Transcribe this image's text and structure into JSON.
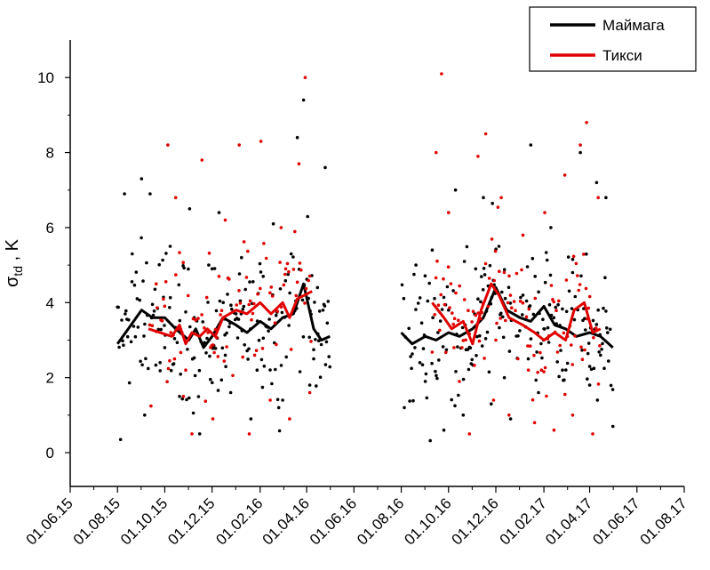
{
  "chart_data": {
    "type": "scatter",
    "ylabel_symbol": "σ",
    "ylabel_sub": "td",
    "ylabel_unit": " , K",
    "xlabel": "",
    "title": "",
    "ylim": [
      -0.9,
      11
    ],
    "xlim": [
      "2015-06-01",
      "2017-08-01"
    ],
    "y_ticks": [
      "0",
      "2",
      "4",
      "6",
      "8",
      "10"
    ],
    "x_ticks": [
      "01.06.15",
      "01.08.15",
      "01.10.15",
      "01.12.15",
      "01.02.16",
      "01.04.16",
      "01.06.16",
      "01.08.16",
      "01.10.16",
      "01.12.16",
      "01.02.17",
      "01.04.17",
      "01.06.17",
      "01.08.17"
    ],
    "legend": {
      "position": "top-right",
      "entries": [
        "Маймага",
        "Тикси"
      ]
    },
    "series": [
      {
        "name": "Маймага",
        "color": "#000000",
        "segments": [
          {
            "start": "2015-08-01",
            "end": "2016-05-01"
          },
          {
            "start": "2016-08-01",
            "end": "2017-05-01"
          }
        ],
        "mean_line": [
          [
            "2015-08-01",
            2.9
          ],
          [
            "2015-08-15",
            3.3
          ],
          [
            "2015-09-01",
            3.8
          ],
          [
            "2015-09-15",
            3.6
          ],
          [
            "2015-10-01",
            3.6
          ],
          [
            "2015-10-15",
            3.3
          ],
          [
            "2015-11-01",
            3.0
          ],
          [
            "2015-11-10",
            3.3
          ],
          [
            "2015-11-20",
            2.8
          ],
          [
            "2015-12-01",
            3.1
          ],
          [
            "2015-12-15",
            3.6
          ],
          [
            "2016-01-01",
            3.4
          ],
          [
            "2016-01-15",
            3.2
          ],
          [
            "2016-02-01",
            3.5
          ],
          [
            "2016-02-15",
            3.3
          ],
          [
            "2016-03-01",
            3.6
          ],
          [
            "2016-03-15",
            3.7
          ],
          [
            "2016-03-28",
            4.5
          ],
          [
            "2016-04-10",
            3.3
          ],
          [
            "2016-04-20",
            3.0
          ],
          [
            "2016-05-01",
            3.1
          ],
          null,
          [
            "2016-08-01",
            3.2
          ],
          [
            "2016-08-15",
            2.9
          ],
          [
            "2016-09-01",
            3.1
          ],
          [
            "2016-09-15",
            3.0
          ],
          [
            "2016-10-01",
            3.2
          ],
          [
            "2016-10-15",
            3.1
          ],
          [
            "2016-11-01",
            3.3
          ],
          [
            "2016-11-15",
            3.6
          ],
          [
            "2016-12-01",
            4.4
          ],
          [
            "2016-12-15",
            3.8
          ],
          [
            "2017-01-01",
            3.6
          ],
          [
            "2017-01-15",
            3.5
          ],
          [
            "2017-02-01",
            3.9
          ],
          [
            "2017-02-15",
            3.4
          ],
          [
            "2017-03-01",
            3.3
          ],
          [
            "2017-03-15",
            3.1
          ],
          [
            "2017-04-01",
            3.2
          ],
          [
            "2017-04-15",
            3.1
          ],
          [
            "2017-05-01",
            2.8
          ]
        ],
        "scatter": [
          [
            "2015-08-05",
            0.35
          ],
          [
            "2015-08-10",
            6.9
          ],
          [
            "2015-08-20",
            5.3
          ],
          [
            "2015-09-01",
            7.3
          ],
          [
            "2015-09-12",
            6.9
          ],
          [
            "2015-09-25",
            2.4
          ],
          [
            "2015-10-08",
            5.5
          ],
          [
            "2015-10-20",
            1.5
          ],
          [
            "2015-11-02",
            6.5
          ],
          [
            "2015-11-15",
            0.5
          ],
          [
            "2015-12-01",
            4.9
          ],
          [
            "2015-12-10",
            6.4
          ],
          [
            "2015-12-25",
            1.6
          ],
          [
            "2016-01-08",
            5.2
          ],
          [
            "2016-01-20",
            0.9
          ],
          [
            "2016-02-05",
            4.7
          ],
          [
            "2016-02-18",
            6.1
          ],
          [
            "2016-03-01",
            1.4
          ],
          [
            "2016-03-12",
            5.3
          ],
          [
            "2016-03-20",
            8.4
          ],
          [
            "2016-03-28",
            9.4
          ],
          [
            "2016-04-05",
            1.8
          ],
          [
            "2016-04-15",
            4.4
          ],
          [
            "2016-04-25",
            7.6
          ],
          [
            "2015-09-05",
            1.0
          ],
          [
            "2015-10-01",
            2.8
          ],
          [
            "2015-11-08",
            3.6
          ],
          [
            "2015-12-18",
            2.6
          ],
          [
            "2016-01-28",
            2.2
          ],
          [
            "2016-02-25",
            1.2
          ],
          [
            "2016-04-10",
            2.5
          ],
          [
            "2016-08-05",
            1.2
          ],
          [
            "2016-08-20",
            5.0
          ],
          [
            "2016-09-01",
            1.9
          ],
          [
            "2016-09-10",
            5.4
          ],
          [
            "2016-09-25",
            0.6
          ],
          [
            "2016-10-10",
            7.0
          ],
          [
            "2016-10-20",
            1.0
          ],
          [
            "2016-11-05",
            4.9
          ],
          [
            "2016-11-15",
            6.8
          ],
          [
            "2016-11-25",
            1.3
          ],
          [
            "2016-12-05",
            5.5
          ],
          [
            "2016-12-20",
            0.9
          ],
          [
            "2017-01-05",
            4.2
          ],
          [
            "2017-01-15",
            8.2
          ],
          [
            "2017-01-25",
            1.6
          ],
          [
            "2017-02-10",
            6.0
          ],
          [
            "2017-02-25",
            2.2
          ],
          [
            "2017-03-10",
            4.8
          ],
          [
            "2017-03-20",
            8.0
          ],
          [
            "2017-04-01",
            1.8
          ],
          [
            "2017-04-10",
            7.2
          ],
          [
            "2017-04-22",
            6.8
          ],
          [
            "2017-05-01",
            0.7
          ],
          [
            "2016-08-25",
            2.4
          ],
          [
            "2016-10-01",
            3.8
          ],
          [
            "2016-12-12",
            2.0
          ],
          [
            "2017-02-01",
            3.3
          ],
          [
            "2017-04-15",
            2.6
          ]
        ]
      },
      {
        "name": "Тикси",
        "color": "#e00000",
        "segments": [
          {
            "start": "2015-09-10",
            "end": "2016-04-08"
          },
          {
            "start": "2016-09-10",
            "end": "2017-04-15"
          }
        ],
        "mean_line": [
          [
            "2015-09-10",
            3.3
          ],
          [
            "2015-09-25",
            3.2
          ],
          [
            "2015-10-10",
            3.1
          ],
          [
            "2015-10-20",
            3.4
          ],
          [
            "2015-10-28",
            2.9
          ],
          [
            "2015-11-05",
            3.2
          ],
          [
            "2015-11-15",
            3.1
          ],
          [
            "2015-11-25",
            3.3
          ],
          [
            "2015-12-05",
            3.1
          ],
          [
            "2015-12-15",
            3.6
          ],
          [
            "2016-01-01",
            3.8
          ],
          [
            "2016-01-15",
            3.7
          ],
          [
            "2016-02-01",
            4.0
          ],
          [
            "2016-02-15",
            3.7
          ],
          [
            "2016-03-01",
            4.0
          ],
          [
            "2016-03-10",
            3.6
          ],
          [
            "2016-03-20",
            4.1
          ],
          [
            "2016-04-08",
            4.3
          ],
          null,
          [
            "2016-09-10",
            4.0
          ],
          [
            "2016-09-25",
            3.6
          ],
          [
            "2016-10-05",
            3.3
          ],
          [
            "2016-10-20",
            3.5
          ],
          [
            "2016-11-01",
            2.9
          ],
          [
            "2016-11-12",
            3.8
          ],
          [
            "2016-11-25",
            4.5
          ],
          [
            "2016-12-05",
            4.2
          ],
          [
            "2016-12-18",
            3.6
          ],
          [
            "2017-01-05",
            3.4
          ],
          [
            "2017-01-20",
            3.2
          ],
          [
            "2017-02-01",
            3.0
          ],
          [
            "2017-02-15",
            3.2
          ],
          [
            "2017-03-01",
            3.0
          ],
          [
            "2017-03-12",
            3.8
          ],
          [
            "2017-03-25",
            4.0
          ],
          [
            "2017-04-05",
            3.2
          ],
          [
            "2017-04-15",
            3.3
          ]
        ],
        "scatter": [
          [
            "2015-09-20",
            4.5
          ],
          [
            "2015-10-05",
            8.2
          ],
          [
            "2015-10-15",
            6.8
          ],
          [
            "2015-10-25",
            1.5
          ],
          [
            "2015-11-05",
            0.5
          ],
          [
            "2015-11-18",
            7.8
          ],
          [
            "2015-12-02",
            0.9
          ],
          [
            "2015-12-18",
            6.2
          ],
          [
            "2016-01-05",
            8.2
          ],
          [
            "2016-01-18",
            0.5
          ],
          [
            "2016-02-02",
            8.3
          ],
          [
            "2016-02-14",
            1.4
          ],
          [
            "2016-02-28",
            6.0
          ],
          [
            "2016-03-10",
            0.9
          ],
          [
            "2016-03-22",
            7.7
          ],
          [
            "2016-03-30",
            10.0
          ],
          [
            "2016-04-05",
            1.6
          ],
          [
            "2015-10-28",
            2.2
          ],
          [
            "2015-12-10",
            4.7
          ],
          [
            "2016-01-25",
            2.6
          ],
          [
            "2016-03-05",
            4.9
          ],
          [
            "2016-09-15",
            8.0
          ],
          [
            "2016-09-22",
            10.1
          ],
          [
            "2016-10-01",
            6.4
          ],
          [
            "2016-10-15",
            1.9
          ],
          [
            "2016-10-28",
            0.5
          ],
          [
            "2016-11-08",
            7.9
          ],
          [
            "2016-11-18",
            8.5
          ],
          [
            "2016-11-28",
            1.4
          ],
          [
            "2016-12-08",
            6.8
          ],
          [
            "2016-12-18",
            1.0
          ],
          [
            "2017-01-05",
            5.8
          ],
          [
            "2017-01-20",
            0.8
          ],
          [
            "2017-02-02",
            6.4
          ],
          [
            "2017-02-14",
            0.6
          ],
          [
            "2017-02-28",
            7.4
          ],
          [
            "2017-03-10",
            1.0
          ],
          [
            "2017-03-20",
            8.2
          ],
          [
            "2017-03-28",
            8.8
          ],
          [
            "2017-04-05",
            0.5
          ],
          [
            "2017-04-12",
            6.8
          ],
          [
            "2016-10-08",
            2.8
          ],
          [
            "2016-12-01",
            3.0
          ],
          [
            "2017-01-12",
            2.2
          ],
          [
            "2017-03-02",
            4.6
          ]
        ]
      }
    ]
  }
}
